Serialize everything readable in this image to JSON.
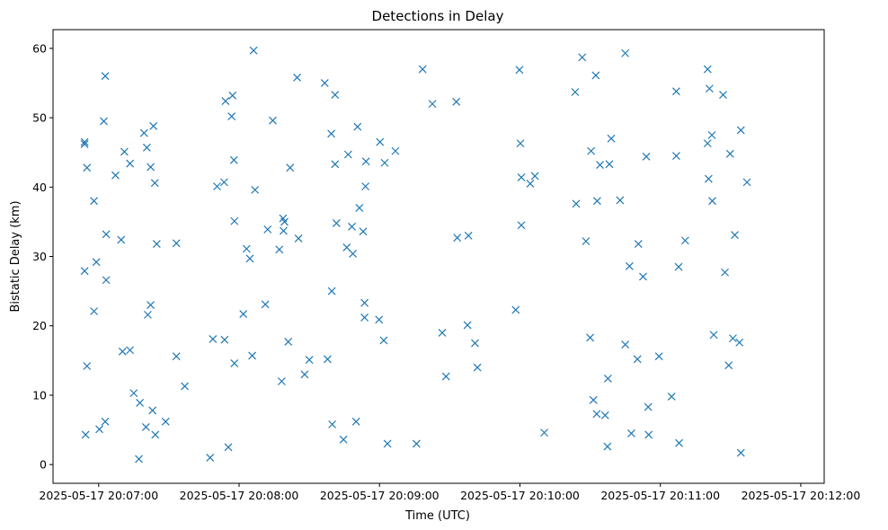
{
  "chart_data": {
    "type": "scatter",
    "title": "Detections in Delay",
    "xlabel": "Time (UTC)",
    "ylabel": "Bistatic Delay (km)",
    "marker": "x",
    "color": "#1f77b4",
    "x_unit": "seconds after 2025-05-17 20:06:00",
    "xlim": [
      40.5,
      370
    ],
    "ylim": [
      -2.7,
      62.7
    ],
    "xticks": [
      {
        "value": 60,
        "label": "2025-05-17 20:07:00"
      },
      {
        "value": 120,
        "label": "2025-05-17 20:08:00"
      },
      {
        "value": 180,
        "label": "2025-05-17 20:09:00"
      },
      {
        "value": 240,
        "label": "2025-05-17 20:10:00"
      },
      {
        "value": 300,
        "label": "2025-05-17 20:11:00"
      },
      {
        "value": 360,
        "label": "2025-05-17 20:12:00"
      }
    ],
    "yticks": [
      {
        "value": 0,
        "label": "0"
      },
      {
        "value": 10,
        "label": "10"
      },
      {
        "value": 20,
        "label": "20"
      },
      {
        "value": 30,
        "label": "30"
      },
      {
        "value": 40,
        "label": "40"
      },
      {
        "value": 50,
        "label": "50"
      },
      {
        "value": 60,
        "label": "60"
      }
    ],
    "points": [
      [
        54.0,
        46.5
      ],
      [
        54.0,
        46.2
      ],
      [
        54.0,
        27.9
      ],
      [
        54.4,
        4.3
      ],
      [
        55.0,
        14.2
      ],
      [
        55.0,
        42.8
      ],
      [
        58.0,
        38.0
      ],
      [
        58.0,
        22.1
      ],
      [
        59.0,
        29.2
      ],
      [
        60.3,
        5.1
      ],
      [
        62.2,
        49.5
      ],
      [
        62.8,
        56.0
      ],
      [
        62.8,
        6.2
      ],
      [
        63.2,
        33.2
      ],
      [
        63.2,
        26.6
      ],
      [
        67.2,
        41.7
      ],
      [
        69.6,
        32.4
      ],
      [
        70.2,
        16.3
      ],
      [
        71.0,
        45.1
      ],
      [
        73.4,
        43.4
      ],
      [
        73.4,
        16.5
      ],
      [
        75.0,
        10.3
      ],
      [
        77.2,
        0.8
      ],
      [
        77.6,
        8.9
      ],
      [
        79.4,
        47.8
      ],
      [
        80.2,
        5.4
      ],
      [
        80.6,
        45.7
      ],
      [
        81.0,
        21.6
      ],
      [
        82.2,
        42.9
      ],
      [
        82.2,
        23.0
      ],
      [
        83.0,
        7.8
      ],
      [
        83.4,
        48.8
      ],
      [
        84.0,
        40.6
      ],
      [
        84.2,
        4.3
      ],
      [
        84.8,
        31.8
      ],
      [
        88.6,
        6.2
      ],
      [
        93.2,
        31.9
      ],
      [
        93.2,
        15.6
      ],
      [
        96.8,
        11.3
      ],
      [
        107.6,
        1.0
      ],
      [
        108.8,
        18.1
      ],
      [
        110.6,
        40.1
      ],
      [
        113.6,
        40.7
      ],
      [
        113.8,
        18.0
      ],
      [
        114.2,
        52.4
      ],
      [
        115.4,
        2.5
      ],
      [
        116.8,
        50.2
      ],
      [
        117.2,
        53.2
      ],
      [
        117.8,
        43.9
      ],
      [
        118.0,
        35.1
      ],
      [
        118.0,
        14.6
      ],
      [
        121.8,
        21.7
      ],
      [
        123.2,
        31.1
      ],
      [
        124.6,
        29.7
      ],
      [
        125.6,
        15.7
      ],
      [
        126.2,
        59.7
      ],
      [
        126.8,
        39.6
      ],
      [
        131.2,
        23.1
      ],
      [
        132.2,
        33.9
      ],
      [
        134.4,
        49.6
      ],
      [
        137.2,
        31.0
      ],
      [
        138.2,
        12.0
      ],
      [
        138.8,
        35.5
      ],
      [
        139.0,
        33.7
      ],
      [
        139.4,
        35.0
      ],
      [
        141.0,
        17.7
      ],
      [
        141.8,
        42.8
      ],
      [
        144.8,
        55.8
      ],
      [
        145.4,
        32.6
      ],
      [
        148.0,
        13.0
      ],
      [
        150.0,
        15.1
      ],
      [
        156.6,
        55.0
      ],
      [
        157.8,
        15.2
      ],
      [
        159.4,
        47.7
      ],
      [
        159.6,
        25.0
      ],
      [
        159.8,
        5.8
      ],
      [
        161.0,
        43.3
      ],
      [
        161.0,
        53.3
      ],
      [
        161.6,
        34.8
      ],
      [
        164.6,
        3.6
      ],
      [
        166.0,
        31.3
      ],
      [
        166.6,
        44.7
      ],
      [
        168.2,
        34.3
      ],
      [
        168.6,
        30.4
      ],
      [
        170.0,
        6.2
      ],
      [
        170.6,
        48.7
      ],
      [
        171.4,
        37.0
      ],
      [
        173.0,
        33.6
      ],
      [
        173.6,
        23.3
      ],
      [
        173.6,
        21.2
      ],
      [
        174.0,
        40.1
      ],
      [
        174.2,
        43.7
      ],
      [
        179.8,
        20.9
      ],
      [
        180.2,
        46.5
      ],
      [
        181.8,
        17.9
      ],
      [
        182.2,
        43.5
      ],
      [
        183.4,
        3.0
      ],
      [
        186.8,
        45.2
      ],
      [
        195.8,
        3.0
      ],
      [
        198.4,
        57.0
      ],
      [
        202.6,
        52.0
      ],
      [
        206.8,
        19.0
      ],
      [
        208.4,
        12.7
      ],
      [
        212.8,
        52.3
      ],
      [
        213.2,
        32.7
      ],
      [
        217.6,
        20.1
      ],
      [
        218.0,
        33.0
      ],
      [
        220.8,
        17.5
      ],
      [
        221.8,
        14.0
      ],
      [
        238.2,
        22.3
      ],
      [
        239.8,
        56.9
      ],
      [
        240.2,
        46.3
      ],
      [
        240.6,
        41.4
      ],
      [
        240.6,
        34.5
      ],
      [
        244.4,
        40.5
      ],
      [
        246.4,
        41.6
      ],
      [
        250.4,
        4.6
      ],
      [
        263.6,
        53.7
      ],
      [
        264.0,
        37.6
      ],
      [
        266.6,
        58.7
      ],
      [
        268.2,
        32.2
      ],
      [
        270.0,
        18.3
      ],
      [
        270.4,
        45.2
      ],
      [
        271.4,
        9.3
      ],
      [
        272.4,
        56.1
      ],
      [
        272.8,
        7.3
      ],
      [
        273.0,
        38.0
      ],
      [
        274.2,
        43.2
      ],
      [
        276.4,
        7.1
      ],
      [
        277.4,
        2.6
      ],
      [
        277.6,
        12.4
      ],
      [
        278.2,
        43.3
      ],
      [
        279.0,
        47.0
      ],
      [
        282.8,
        38.1
      ],
      [
        285.0,
        59.3
      ],
      [
        285.0,
        17.3
      ],
      [
        286.8,
        28.6
      ],
      [
        287.6,
        4.5
      ],
      [
        290.2,
        15.2
      ],
      [
        290.6,
        31.8
      ],
      [
        292.6,
        27.1
      ],
      [
        294.0,
        44.4
      ],
      [
        294.8,
        8.3
      ],
      [
        295.0,
        4.3
      ],
      [
        299.4,
        15.6
      ],
      [
        304.8,
        9.8
      ],
      [
        306.8,
        53.8
      ],
      [
        306.8,
        44.5
      ],
      [
        307.8,
        28.5
      ],
      [
        308.0,
        3.1
      ],
      [
        310.6,
        32.3
      ],
      [
        320.2,
        57.0
      ],
      [
        320.2,
        46.3
      ],
      [
        320.6,
        41.2
      ],
      [
        321.0,
        54.2
      ],
      [
        322.0,
        47.5
      ],
      [
        322.2,
        38.0
      ],
      [
        322.8,
        18.7
      ],
      [
        326.8,
        53.3
      ],
      [
        327.6,
        27.7
      ],
      [
        329.2,
        14.3
      ],
      [
        329.8,
        44.8
      ],
      [
        331.0,
        18.2
      ],
      [
        331.8,
        33.1
      ],
      [
        333.8,
        17.6
      ],
      [
        334.4,
        48.2
      ],
      [
        334.4,
        1.7
      ],
      [
        337.0,
        40.7
      ]
    ]
  }
}
